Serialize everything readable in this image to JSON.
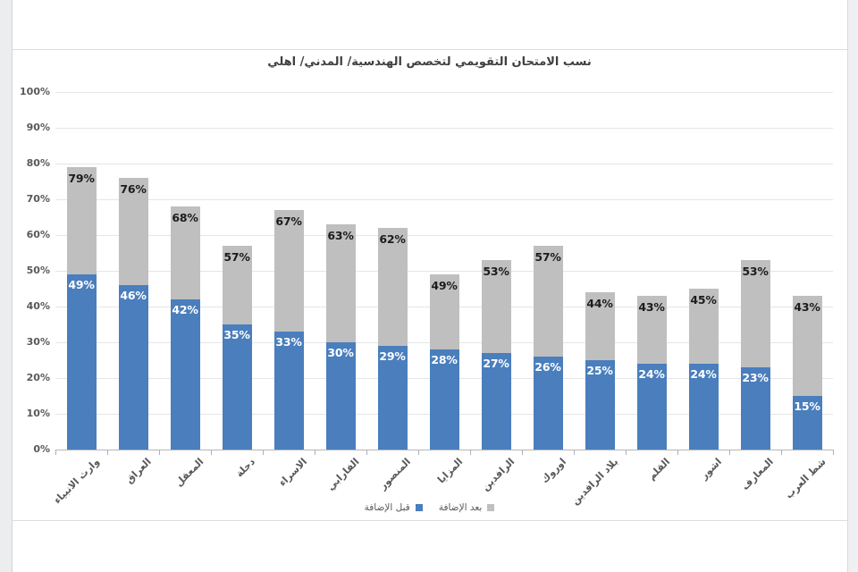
{
  "chart_data": {
    "type": "bar",
    "stacked": true,
    "title": "نسب الامتحان التقويمي لتخصص الهندسية/ المدني/ اهلي",
    "categories": [
      "وارث الانبياء",
      "العراق",
      "المعقل",
      "دجلة",
      "الاسراء",
      "الفارابي",
      "المنصور",
      "المزايا",
      "الرافدين",
      "اوروك",
      "بلاد الرافدين",
      "القلم",
      "اشور",
      "المعارف",
      "شط العرب"
    ],
    "series": [
      {
        "name": "قبل الإضافة",
        "color": "#4a7ebd",
        "label_color": "#ffffff",
        "values": [
          49,
          46,
          42,
          35,
          33,
          30,
          29,
          28,
          27,
          26,
          25,
          24,
          24,
          23,
          15
        ]
      },
      {
        "name": "بعد الإضافة",
        "color": "#bfbfbf",
        "label_color": "#1c1c1c",
        "values": [
          30,
          30,
          26,
          22,
          34,
          33,
          33,
          21,
          26,
          31,
          19,
          19,
          21,
          30,
          28
        ]
      }
    ],
    "totals": [
      79,
      76,
      68,
      57,
      67,
      63,
      62,
      49,
      53,
      57,
      44,
      43,
      45,
      53,
      43
    ],
    "bar_labels_top": [
      "79%",
      "76%",
      "68%",
      "57%",
      "67%",
      "63%",
      "62%",
      "49%",
      "53%",
      "57%",
      "44%",
      "43%",
      "45%",
      "53%",
      "43%"
    ],
    "bar_labels_bottom": [
      "49%",
      "46%",
      "42%",
      "35%",
      "33%",
      "30%",
      "29%",
      "28%",
      "27%",
      "26%",
      "25%",
      "24%",
      "24%",
      "23%",
      "15%"
    ],
    "ylim": [
      0,
      100
    ],
    "ytick_step": 10,
    "ytick_suffix": "%",
    "ytick_labels": [
      "0%",
      "10%",
      "20%",
      "30%",
      "40%",
      "50%",
      "60%",
      "70%",
      "80%",
      "90%",
      "100%"
    ],
    "grid": true,
    "legend_position": "bottom"
  }
}
